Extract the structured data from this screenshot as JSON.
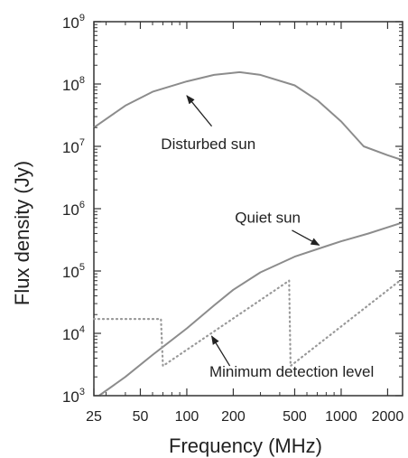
{
  "chart_data": {
    "type": "line",
    "xlabel": "Frequency (MHz)",
    "ylabel": "Flux density (Jy)",
    "x_scale": "log",
    "y_scale": "log",
    "xlim": [
      25,
      2500
    ],
    "ylim": [
      1000,
      1000000000
    ],
    "grid": false,
    "x_ticks": [
      {
        "value": 25,
        "label": "25"
      },
      {
        "value": 50,
        "label": "50"
      },
      {
        "value": 100,
        "label": "100"
      },
      {
        "value": 200,
        "label": "200"
      },
      {
        "value": 500,
        "label": "500"
      },
      {
        "value": 1000,
        "label": "1000"
      },
      {
        "value": 2000,
        "label": "2000"
      }
    ],
    "y_ticks": [
      {
        "value": 1000,
        "base": "10",
        "exp": "3"
      },
      {
        "value": 10000,
        "base": "10",
        "exp": "4"
      },
      {
        "value": 100000,
        "base": "10",
        "exp": "5"
      },
      {
        "value": 1000000,
        "base": "10",
        "exp": "6"
      },
      {
        "value": 10000000,
        "base": "10",
        "exp": "7"
      },
      {
        "value": 100000000,
        "base": "10",
        "exp": "8"
      },
      {
        "value": 1000000000,
        "base": "10",
        "exp": "9"
      }
    ],
    "series": [
      {
        "style": "solid",
        "color": "#8c8c8c",
        "points": [
          [
            25,
            20000000
          ],
          [
            40,
            45000000
          ],
          [
            60,
            75000000
          ],
          [
            100,
            110000000
          ],
          [
            150,
            140000000
          ],
          [
            220,
            155000000
          ],
          [
            300,
            140000000
          ],
          [
            500,
            95000000
          ],
          [
            700,
            55000000
          ],
          [
            1000,
            25000000
          ],
          [
            1400,
            10000000
          ],
          [
            2000,
            7200000
          ],
          [
            2500,
            6000000
          ]
        ]
      },
      {
        "style": "solid",
        "color": "#8c8c8c",
        "points": [
          [
            27,
            1000
          ],
          [
            40,
            2000
          ],
          [
            60,
            4500
          ],
          [
            100,
            12000
          ],
          [
            150,
            28000
          ],
          [
            200,
            50000
          ],
          [
            300,
            95000
          ],
          [
            500,
            170000
          ],
          [
            800,
            250000
          ],
          [
            1000,
            300000
          ],
          [
            1500,
            400000
          ],
          [
            2500,
            600000
          ]
        ]
      },
      {
        "style": "dotted",
        "color": "#999999",
        "points": [
          [
            25,
            17000
          ],
          [
            68,
            17000
          ],
          [
            70,
            3000
          ],
          [
            460,
            70000
          ],
          [
            470,
            3000
          ],
          [
            2400,
            70000
          ]
        ]
      }
    ],
    "annotations": [
      {
        "id": "disturbed",
        "text": "Disturbed sun",
        "text_x": 68,
        "text_y": 9000000,
        "arrow_from": [
          145,
          21000000
        ],
        "arrow_to": [
          100,
          65000000
        ]
      },
      {
        "id": "quiet",
        "text": "Quiet sun",
        "text_x": 205,
        "text_y": 600000,
        "arrow_from": [
          480,
          450000
        ],
        "arrow_to": [
          720,
          260000
        ]
      },
      {
        "id": "detection",
        "text": "Minimum detection level",
        "text_x": 140,
        "text_y": 2000,
        "arrow_from": [
          190,
          3000
        ],
        "arrow_to": [
          145,
          9000
        ]
      }
    ]
  }
}
